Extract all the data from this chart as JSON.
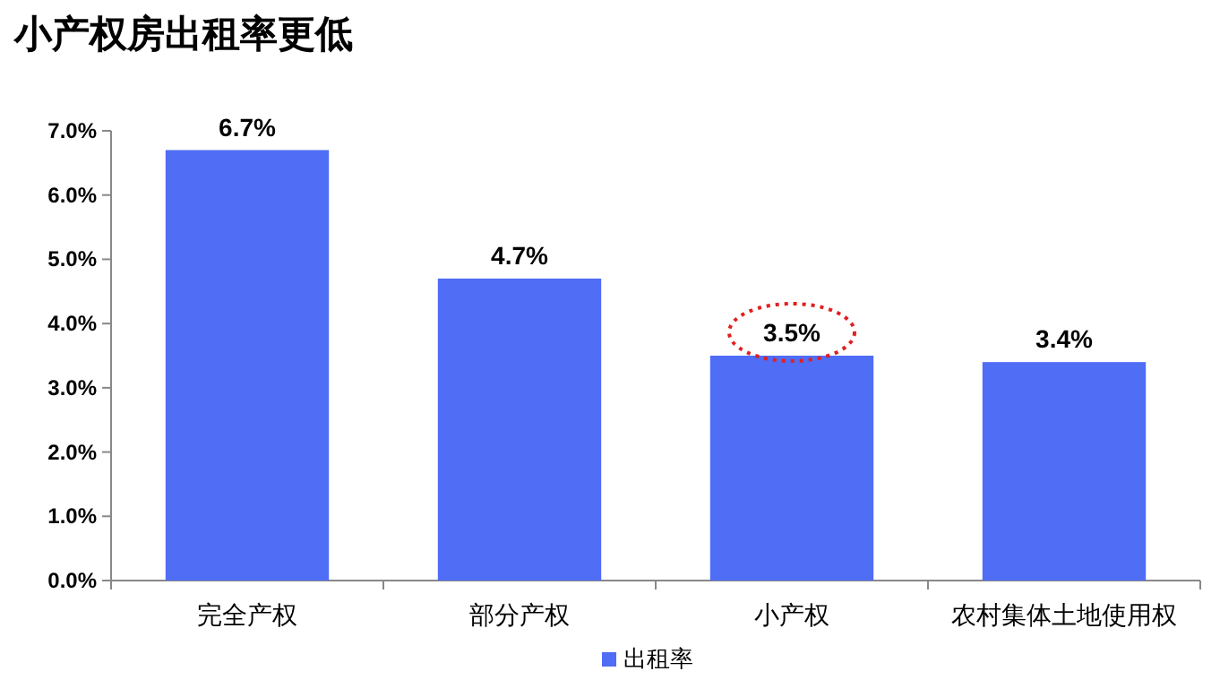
{
  "chart_data": {
    "type": "bar",
    "title": "小产权房出租率更低",
    "categories": [
      "完全产权",
      "部分产权",
      "小产权",
      "农村集体土地使用权"
    ],
    "series": [
      {
        "name": "出租率",
        "color": "#4f6df5",
        "values": [
          6.7,
          4.7,
          3.5,
          3.4
        ],
        "value_labels": [
          "6.7%",
          "4.7%",
          "3.5%",
          "3.4%"
        ]
      }
    ],
    "ylim": [
      0,
      7
    ],
    "yticks": [
      {
        "value": 0,
        "label": "0.0%"
      },
      {
        "value": 1,
        "label": "1.0%"
      },
      {
        "value": 2,
        "label": "2.0%"
      },
      {
        "value": 3,
        "label": "3.0%"
      },
      {
        "value": 4,
        "label": "4.0%"
      },
      {
        "value": 5,
        "label": "5.0%"
      },
      {
        "value": 6,
        "label": "6.0%"
      },
      {
        "value": 7,
        "label": "7.0%"
      }
    ],
    "grid": false,
    "legend": "bottom"
  }
}
